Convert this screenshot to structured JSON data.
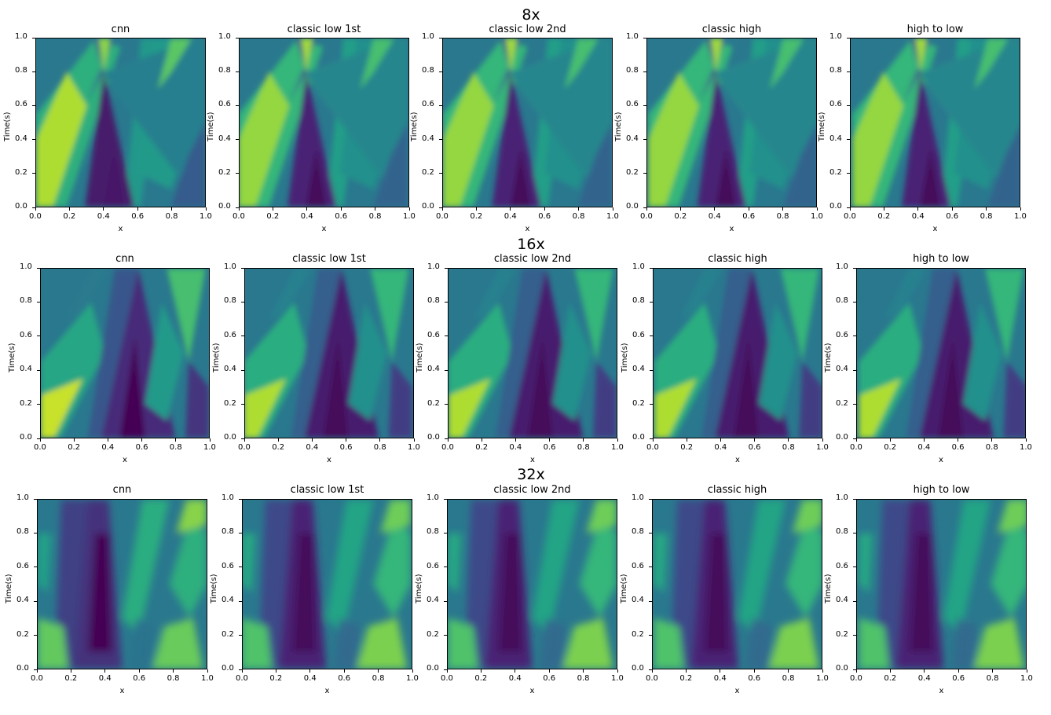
{
  "chart_data": {
    "type": "heatmap",
    "colormap": "viridis",
    "rows": [
      {
        "title": "8x",
        "panels": [
          {
            "title": "cnn",
            "xlabel": "x",
            "ylabel": "Time(s)"
          },
          {
            "title": "classic low 1st",
            "xlabel": "x",
            "ylabel": "Time(s)"
          },
          {
            "title": "classic low 2nd",
            "xlabel": "x",
            "ylabel": "Time(s)"
          },
          {
            "title": "classic high",
            "xlabel": "x",
            "ylabel": "Time(s)"
          },
          {
            "title": "high to low",
            "xlabel": "x",
            "ylabel": "Time(s)"
          }
        ]
      },
      {
        "title": "16x",
        "panels": [
          {
            "title": "cnn",
            "xlabel": "x",
            "ylabel": "Time(s)"
          },
          {
            "title": "classic low 1st",
            "xlabel": "x",
            "ylabel": "Time(s)"
          },
          {
            "title": "classic low 2nd",
            "xlabel": "x",
            "ylabel": "Time(s)"
          },
          {
            "title": "classic high",
            "xlabel": "x",
            "ylabel": "Time(s)"
          },
          {
            "title": "high to low",
            "xlabel": "x",
            "ylabel": "Time(s)"
          }
        ]
      },
      {
        "title": "32x",
        "panels": [
          {
            "title": "cnn",
            "xlabel": "x",
            "ylabel": "Time(s)"
          },
          {
            "title": "classic low 1st",
            "xlabel": "x",
            "ylabel": "Time(s)"
          },
          {
            "title": "classic low 2nd",
            "xlabel": "x",
            "ylabel": "Time(s)"
          },
          {
            "title": "classic high",
            "xlabel": "x",
            "ylabel": "Time(s)"
          },
          {
            "title": "high to low",
            "xlabel": "x",
            "ylabel": "Time(s)"
          }
        ]
      }
    ],
    "xlim": [
      0.0,
      1.0
    ],
    "ylim": [
      0.0,
      1.0
    ],
    "xticks": [
      "0.0",
      "0.2",
      "0.4",
      "0.6",
      "0.8",
      "1.0"
    ],
    "yticks": [
      "0.0",
      "0.2",
      "0.4",
      "0.6",
      "0.8",
      "1.0"
    ]
  }
}
